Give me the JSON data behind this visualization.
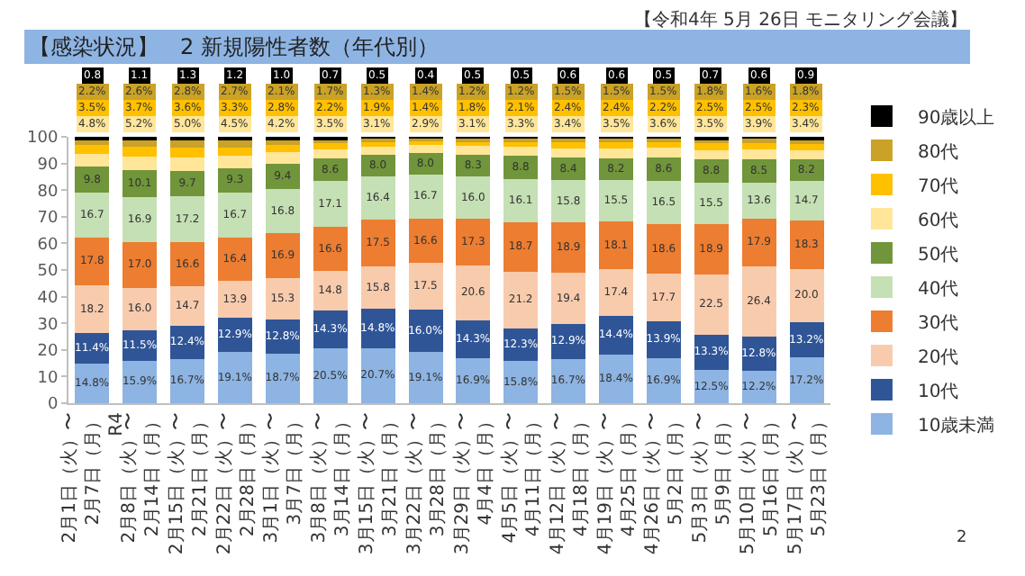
{
  "chart_data": {
    "type": "bar",
    "stacked": true,
    "title": "【感染状況】　2 新規陽性者数（年代別）",
    "annotations": [
      "【令和4年 5月 26日 モニタリング会議】",
      "2"
    ],
    "categories": [
      "2月1日（火）〜\n2月7日（月）\nR4",
      "2月8日（火）〜\n2月14日（月）",
      "2月15日（火）〜\n2月21日（月）",
      "2月22日（火）〜\n2月28日（月）",
      "3月1日（火）〜\n3月7日（月）",
      "3月8日（火）〜\n3月14日（月）",
      "3月15日（火）〜\n3月21日（月）",
      "3月22日（火）〜\n3月28日（月）",
      "3月29日（火）〜\n4月4日（月）",
      "4月5日（火）〜\n4月11日（月）",
      "4月12日（火）〜\n4月18日（月）",
      "4月19日（火）〜\n4月25日（月）",
      "4月26日（火）〜\n5月2日（月）",
      "5月3日（火）〜\n5月9日（月）",
      "5月10日（火）〜\n5月16日（月）",
      "5月17日（火）〜\n5月23日（月）"
    ],
    "series": [
      {
        "name": "10歳未満",
        "color": "#8db4e2",
        "values": [
          14.8,
          15.9,
          16.7,
          19.1,
          18.7,
          20.5,
          20.7,
          19.1,
          16.9,
          15.8,
          16.7,
          18.4,
          16.9,
          12.5,
          12.2,
          17.2
        ],
        "value_labels": [
          "14.8%",
          "15.9%",
          "16.7%",
          "19.1%",
          "18.7%",
          "20.5%",
          "20.7%",
          "19.1%",
          "16.9%",
          "15.8%",
          "16.7%",
          "18.4%",
          "16.9%",
          "12.5%",
          "12.2%",
          "17.2%"
        ]
      },
      {
        "name": "10代",
        "color": "#2f5597",
        "values": [
          11.4,
          11.5,
          12.4,
          12.9,
          12.8,
          14.3,
          14.8,
          16.0,
          14.3,
          12.3,
          12.9,
          14.4,
          13.9,
          13.3,
          12.8,
          13.2
        ],
        "value_labels": [
          "11.4%",
          "11.5%",
          "12.4%",
          "12.9%",
          "12.8%",
          "14.3%",
          "14.8%",
          "16.0%",
          "14.3%",
          "12.3%",
          "12.9%",
          "14.4%",
          "13.9%",
          "13.3%",
          "12.8%",
          "13.2%"
        ]
      },
      {
        "name": "20代",
        "color": "#f8cbad",
        "values": [
          18.2,
          16.0,
          14.7,
          13.9,
          15.3,
          14.8,
          15.8,
          17.5,
          20.6,
          21.2,
          19.4,
          17.4,
          17.7,
          22.5,
          26.4,
          20.0
        ],
        "value_labels": [
          "18.2",
          "16.0",
          "14.7",
          "13.9",
          "15.3",
          "14.8",
          "15.8",
          "17.5",
          "20.6",
          "21.2",
          "19.4",
          "17.4",
          "17.7",
          "22.5",
          "26.4",
          "20.0"
        ]
      },
      {
        "name": "30代",
        "color": "#ed7d31",
        "values": [
          17.8,
          17.0,
          16.6,
          16.4,
          16.9,
          16.6,
          17.5,
          16.6,
          17.3,
          18.7,
          18.9,
          18.1,
          18.6,
          18.9,
          17.9,
          18.3
        ],
        "value_labels": [
          "17.8",
          "17.0",
          "16.6",
          "16.4",
          "16.9",
          "16.6",
          "17.5",
          "16.6",
          "17.3",
          "18.7",
          "18.9",
          "18.1",
          "18.6",
          "18.9",
          "17.9",
          "18.3"
        ]
      },
      {
        "name": "40代",
        "color": "#c5e0b4",
        "values": [
          16.7,
          16.9,
          17.2,
          16.7,
          16.8,
          17.1,
          16.4,
          16.7,
          16.0,
          16.1,
          15.8,
          15.5,
          16.5,
          15.5,
          13.6,
          14.7
        ],
        "value_labels": [
          "16.7",
          "16.9",
          "17.2",
          "16.7",
          "16.8",
          "17.1",
          "16.4",
          "16.7",
          "16.0",
          "16.1",
          "15.8",
          "15.5",
          "16.5",
          "15.5",
          "13.6",
          "14.7"
        ]
      },
      {
        "name": "50代",
        "color": "#70953a",
        "values": [
          9.8,
          10.1,
          9.7,
          9.3,
          9.4,
          8.6,
          8.0,
          8.0,
          8.3,
          8.8,
          8.4,
          8.2,
          8.6,
          8.8,
          8.5,
          8.2
        ],
        "value_labels": [
          "9.8",
          "10.1",
          "9.7",
          "9.3",
          "9.4",
          "8.6",
          "8.0",
          "8.0",
          "8.3",
          "8.8",
          "8.4",
          "8.2",
          "8.6",
          "8.8",
          "8.5",
          "8.2"
        ]
      },
      {
        "name": "60代",
        "color": "#ffe699",
        "values": [
          4.8,
          5.2,
          5.0,
          4.5,
          4.2,
          3.5,
          3.1,
          2.9,
          3.1,
          3.3,
          3.4,
          3.5,
          3.6,
          3.5,
          3.9,
          3.4
        ],
        "value_labels": [
          "4.8%",
          "5.2%",
          "5.0%",
          "4.5%",
          "4.2%",
          "3.5%",
          "3.1%",
          "2.9%",
          "3.1%",
          "3.3%",
          "3.4%",
          "3.5%",
          "3.6%",
          "3.5%",
          "3.9%",
          "3.4%"
        ]
      },
      {
        "name": "70代",
        "color": "#ffc000",
        "values": [
          3.5,
          3.7,
          3.6,
          3.3,
          2.8,
          2.2,
          1.9,
          1.4,
          1.8,
          2.1,
          2.4,
          2.4,
          2.2,
          2.5,
          2.5,
          2.3
        ],
        "value_labels": [
          "3.5%",
          "3.7%",
          "3.6%",
          "3.3%",
          "2.8%",
          "2.2%",
          "1.9%",
          "1.4%",
          "1.8%",
          "2.1%",
          "2.4%",
          "2.4%",
          "2.2%",
          "2.5%",
          "2.5%",
          "2.3%"
        ]
      },
      {
        "name": "80代",
        "color": "#c9a227",
        "values": [
          2.2,
          2.6,
          2.8,
          2.7,
          2.1,
          1.7,
          1.3,
          1.4,
          1.2,
          1.2,
          1.5,
          1.5,
          1.5,
          1.8,
          1.6,
          1.8
        ],
        "value_labels": [
          "2.2%",
          "2.6%",
          "2.8%",
          "2.7%",
          "2.1%",
          "1.7%",
          "1.3%",
          "1.4%",
          "1.2%",
          "1.2%",
          "1.5%",
          "1.5%",
          "1.5%",
          "1.8%",
          "1.6%",
          "1.8%"
        ]
      },
      {
        "name": "90歳以上",
        "color": "#000000",
        "values": [
          0.8,
          1.1,
          1.3,
          1.2,
          1.0,
          0.7,
          0.5,
          0.4,
          0.5,
          0.5,
          0.6,
          0.6,
          0.5,
          0.7,
          0.6,
          0.9
        ],
        "value_labels": [
          "0.8",
          "1.1",
          "1.3",
          "1.2",
          "1.0",
          "0.7",
          "0.5",
          "0.4",
          "0.5",
          "0.5",
          "0.6",
          "0.6",
          "0.5",
          "0.7",
          "0.6",
          "0.9"
        ]
      }
    ],
    "ylim": [
      0,
      100
    ],
    "yticks": [
      0,
      10,
      20,
      30,
      40,
      50,
      60,
      70,
      80,
      90,
      100
    ],
    "legend": "right"
  }
}
